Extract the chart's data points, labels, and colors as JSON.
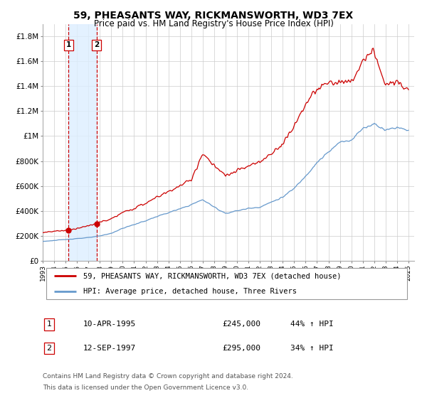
{
  "title": "59, PHEASANTS WAY, RICKMANSWORTH, WD3 7EX",
  "subtitle": "Price paid vs. HM Land Registry's House Price Index (HPI)",
  "xlim": [
    1993.0,
    2025.5
  ],
  "ylim": [
    0,
    1900000
  ],
  "yticks": [
    0,
    200000,
    400000,
    600000,
    800000,
    1000000,
    1200000,
    1400000,
    1600000,
    1800000
  ],
  "ytick_labels": [
    "£0",
    "£200K",
    "£400K",
    "£600K",
    "£800K",
    "£1M",
    "£1.2M",
    "£1.4M",
    "£1.6M",
    "£1.8M"
  ],
  "sale1_date": 1995.27,
  "sale1_price": 245000,
  "sale1_label": "1",
  "sale1_text": "10-APR-1995",
  "sale1_price_str": "£245,000",
  "sale1_pct": "44% ↑ HPI",
  "sale2_date": 1997.71,
  "sale2_price": 295000,
  "sale2_label": "2",
  "sale2_text": "12-SEP-1997",
  "sale2_price_str": "£295,000",
  "sale2_pct": "34% ↑ HPI",
  "red_color": "#cc0000",
  "blue_color": "#6699cc",
  "vline_color": "#cc0000",
  "shade_color": "#ddeeff",
  "legend1": "59, PHEASANTS WAY, RICKMANSWORTH, WD3 7EX (detached house)",
  "legend2": "HPI: Average price, detached house, Three Rivers",
  "footer1": "Contains HM Land Registry data © Crown copyright and database right 2024.",
  "footer2": "This data is licensed under the Open Government Licence v3.0.",
  "bg_color": "#ffffff",
  "grid_color": "#cccccc",
  "hpi_knots": [
    1993,
    1994,
    1995,
    1996,
    1997,
    1998,
    1999,
    2000,
    2001,
    2002,
    2003,
    2004,
    2005,
    2006,
    2007,
    2008,
    2009,
    2010,
    2011,
    2012,
    2013,
    2014,
    2015,
    2016,
    2017,
    2018,
    2019,
    2020,
    2021,
    2022,
    2023,
    2024,
    2025
  ],
  "hpi_vals": [
    155000,
    162000,
    170000,
    178000,
    185000,
    198000,
    220000,
    260000,
    290000,
    320000,
    355000,
    385000,
    415000,
    450000,
    490000,
    430000,
    380000,
    400000,
    420000,
    430000,
    470000,
    510000,
    580000,
    680000,
    790000,
    870000,
    950000,
    970000,
    1060000,
    1100000,
    1050000,
    1070000,
    1050000
  ],
  "red_knots": [
    1993,
    1994,
    1995.27,
    1996,
    1997.71,
    1998,
    1999,
    2000,
    2001,
    2002,
    2003,
    2004,
    2005,
    2006,
    2007,
    2008,
    2009,
    2010,
    2011,
    2012,
    2013,
    2014,
    2015,
    2016,
    2017,
    2018,
    2019,
    2020,
    2021,
    2022,
    2023,
    2024,
    2025
  ],
  "red_vals": [
    225000,
    237000,
    245000,
    260000,
    295000,
    310000,
    335000,
    385000,
    420000,
    460000,
    510000,
    555000,
    600000,
    650000,
    860000,
    760000,
    680000,
    720000,
    760000,
    790000,
    860000,
    940000,
    1080000,
    1260000,
    1370000,
    1430000,
    1430000,
    1430000,
    1600000,
    1680000,
    1400000,
    1440000,
    1400000
  ]
}
